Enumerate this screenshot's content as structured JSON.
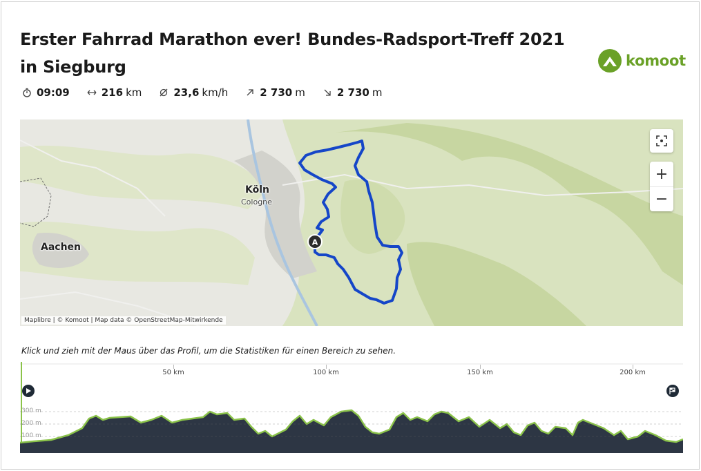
{
  "tour": {
    "title": "Erster Fahrrad Marathon ever! Bundes-Radsport-Treff 2021 in Siegburg"
  },
  "brand": {
    "name": "komoot",
    "color": "#6aa127"
  },
  "stats": [
    {
      "icon": "stopwatch-icon",
      "value": "09:09",
      "unit": ""
    },
    {
      "icon": "distance-icon",
      "value": "216",
      "unit": "km"
    },
    {
      "icon": "avg-speed-icon",
      "value": "23,6",
      "unit": "km/h"
    },
    {
      "icon": "uphill-icon",
      "value": "2 730",
      "unit": "m"
    },
    {
      "icon": "downhill-icon",
      "value": "2 730",
      "unit": "m"
    }
  ],
  "map": {
    "places": {
      "koeln": "Köln",
      "cologne": "Cologne",
      "aachen": "Aachen"
    },
    "start_marker": "A",
    "route_color": "#1546c8",
    "zoom_in": "+",
    "zoom_out": "−",
    "attribution": "Maplibre | © Komoot | Map data © OpenStreetMap-Mitwirkende"
  },
  "profile": {
    "hint": "Klick und zieh mit der Maus über das Profil, um die Statistiken für einen Bereich zu sehen.",
    "distance_ticks": [
      "50 km",
      "100 km",
      "150 km",
      "200 km"
    ],
    "elevation_ticks": [
      "300 m",
      "200 m",
      "100 m"
    ],
    "fill_color": "#2d3644",
    "line_color": "#8bc34a"
  }
}
